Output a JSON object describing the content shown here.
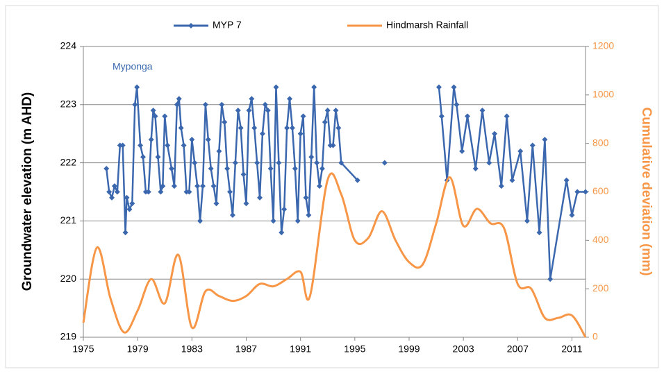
{
  "chart_data": {
    "type": "line",
    "annotation": "Myponga",
    "y_label": "Groundwater elevation (m AHD)",
    "y2_label": "Cumulative deviation (mm)",
    "legend": "top",
    "grid": true,
    "xlim": [
      1975,
      2012
    ],
    "xticks": [
      1975,
      1979,
      1983,
      1987,
      1991,
      1995,
      1999,
      2003,
      2007,
      2011
    ],
    "ylim": [
      219,
      224
    ],
    "yticks": [
      219,
      220,
      221,
      222,
      223,
      224
    ],
    "y2lim": [
      0,
      1200
    ],
    "y2ticks": [
      0,
      200,
      400,
      600,
      800,
      1000,
      1200
    ],
    "series": [
      {
        "name": "MYP 7",
        "color": "#3a67ad",
        "marker": "diamond",
        "x": [
          1976.7,
          1976.9,
          1977.1,
          1977.3,
          1977.5,
          1977.7,
          1977.9,
          1978.1,
          1978.2,
          1978.4,
          1978.6,
          1978.8,
          1978.95,
          1979.2,
          1979.4,
          1979.6,
          1979.8,
          1980.0,
          1980.15,
          1980.3,
          1980.5,
          1980.7,
          1980.85,
          1981.0,
          1981.2,
          1981.5,
          1981.7,
          1981.9,
          1982.05,
          1982.2,
          1982.4,
          1982.6,
          1982.8,
          1983.0,
          1983.2,
          1983.4,
          1983.6,
          1983.8,
          1984.0,
          1984.2,
          1984.4,
          1984.6,
          1984.8,
          1985.0,
          1985.2,
          1985.4,
          1985.6,
          1985.8,
          1986.0,
          1986.2,
          1986.4,
          1986.6,
          1986.8,
          1987.0,
          1987.2,
          1987.4,
          1987.6,
          1987.8,
          1988.0,
          1988.2,
          1988.4,
          1988.6,
          1988.8,
          1989.0,
          1989.2,
          1989.4,
          1989.6,
          1989.8,
          1990.0,
          1990.2,
          1990.4,
          1990.6,
          1990.8,
          1991.0,
          1991.2,
          1991.4,
          1991.6,
          1991.8,
          1992.0,
          1992.2,
          1992.4,
          1992.6,
          1992.8,
          1993.0,
          1993.2,
          1993.4,
          1993.6,
          1993.8,
          1994.0,
          1995.2,
          1996.2,
          1997.2,
          1999.0,
          2001.2,
          2001.4,
          2001.8,
          2002.3,
          2002.5,
          2002.9,
          2003.3,
          2003.9,
          2004.4,
          2004.9,
          2005.3,
          2005.8,
          2006.2,
          2006.6,
          2007.2,
          2007.7,
          2008.1,
          2008.6,
          2009.0,
          2009.4,
          2010.6,
          2011.0,
          2011.4,
          2012.0
        ],
        "values": [
          221.9,
          221.5,
          221.4,
          221.6,
          221.5,
          222.3,
          222.3,
          220.8,
          221.4,
          221.2,
          221.3,
          223.0,
          223.3,
          222.3,
          222.1,
          221.5,
          221.5,
          222.4,
          222.9,
          222.8,
          222.1,
          221.5,
          221.6,
          222.8,
          222.3,
          221.9,
          221.6,
          223.0,
          223.1,
          222.6,
          222.3,
          221.5,
          221.5,
          222.4,
          222.0,
          221.6,
          221.0,
          221.6,
          223.0,
          222.4,
          221.9,
          221.6,
          221.3,
          222.2,
          223.0,
          222.7,
          221.9,
          221.5,
          221.1,
          222.0,
          222.9,
          222.6,
          221.8,
          221.3,
          222.9,
          223.1,
          222.6,
          222.0,
          221.4,
          222.5,
          223.0,
          222.9,
          221.9,
          221.0,
          223.3,
          222.0,
          220.8,
          221.2,
          222.6,
          223.1,
          222.6,
          221.9,
          221.0,
          222.5,
          222.8,
          221.4,
          221.1,
          222.1,
          223.3,
          222.0,
          221.6,
          221.9,
          222.7,
          222.9,
          222.3,
          222.3,
          222.9,
          222.6,
          222.0,
          221.7,
          null,
          222.0,
          null,
          223.3,
          222.8,
          221.7,
          223.3,
          223.0,
          222.2,
          222.8,
          221.9,
          222.9,
          222.0,
          222.5,
          221.6,
          222.8,
          221.7,
          222.2,
          221.0,
          222.3,
          220.8,
          222.4,
          220.0,
          221.7,
          221.1,
          221.5,
          221.5
        ]
      },
      {
        "name": "Hindmarsh Rainfall",
        "color": "#f79646",
        "axis": "y2",
        "smooth": true,
        "x": [
          1975,
          1976,
          1977,
          1978,
          1979,
          1980,
          1981,
          1982,
          1983,
          1984,
          1985,
          1986,
          1987,
          1988,
          1989,
          1990,
          1991,
          1991.7,
          1993,
          1994,
          1995,
          1996,
          1997,
          1998,
          1999,
          2000,
          2001,
          2002,
          2003,
          2004,
          2005,
          2006,
          2007,
          2008,
          2009,
          2010,
          2011,
          2012
        ],
        "values": [
          60,
          370,
          160,
          20,
          110,
          240,
          140,
          340,
          40,
          190,
          170,
          150,
          170,
          220,
          210,
          240,
          270,
          170,
          650,
          590,
          400,
          410,
          520,
          400,
          310,
          300,
          470,
          660,
          460,
          530,
          470,
          450,
          220,
          200,
          80,
          80,
          90,
          0
        ]
      }
    ]
  }
}
